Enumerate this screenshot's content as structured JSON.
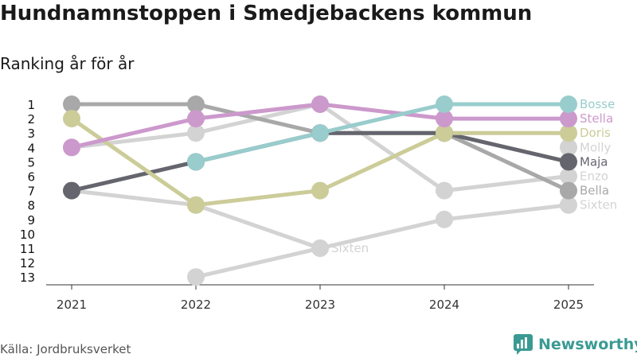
{
  "header": {
    "title": "Hundnamnstoppen i Smedjebackens kommun",
    "subtitle": "Ranking år för år"
  },
  "footer": {
    "source": "Källa: Jordbruksverket",
    "brand": "Newsworthy",
    "brand_icon": "bar-chart-speech-bubble-icon",
    "brand_color": "#3a9a93"
  },
  "chart_data": {
    "type": "line",
    "title": "Hundnamnstoppen i Smedjebackens kommun",
    "subtitle": "Ranking år för år",
    "xlabel": "",
    "ylabel": "",
    "x": [
      "2021",
      "2022",
      "2023",
      "2024",
      "2025"
    ],
    "y_ticks": [
      1,
      2,
      3,
      4,
      5,
      6,
      7,
      8,
      9,
      10,
      11,
      12,
      13
    ],
    "ylim": [
      1,
      13
    ],
    "y_inverted": true,
    "grid": false,
    "series": [
      {
        "name": "Sixten",
        "color": "#d3d3d3",
        "values": [
          null,
          13,
          11,
          9,
          8
        ],
        "label_2023": "Sixten"
      },
      {
        "name": "Enzo",
        "color": "#d3d3d3",
        "values": [
          4,
          3,
          1,
          7,
          6
        ]
      },
      {
        "name": "Molly",
        "color": "#d3d3d3",
        "values": [
          7,
          8,
          11,
          null,
          4
        ]
      },
      {
        "name": "Bella",
        "color": "#a8a8a8",
        "values": [
          1,
          1,
          3,
          3,
          7
        ]
      },
      {
        "name": "Maja",
        "color": "#65656e",
        "values": [
          7,
          5,
          3,
          3,
          5
        ]
      },
      {
        "name": "Doris",
        "color": "#cccc99",
        "values": [
          2,
          8,
          7,
          3,
          3
        ]
      },
      {
        "name": "Stella",
        "color": "#cc99cc",
        "values": [
          4,
          2,
          1,
          2,
          2
        ]
      },
      {
        "name": "Bosse",
        "color": "#99cccc",
        "values": [
          null,
          5,
          3,
          1,
          1
        ]
      }
    ],
    "legend_placement": "right-end-labels"
  }
}
